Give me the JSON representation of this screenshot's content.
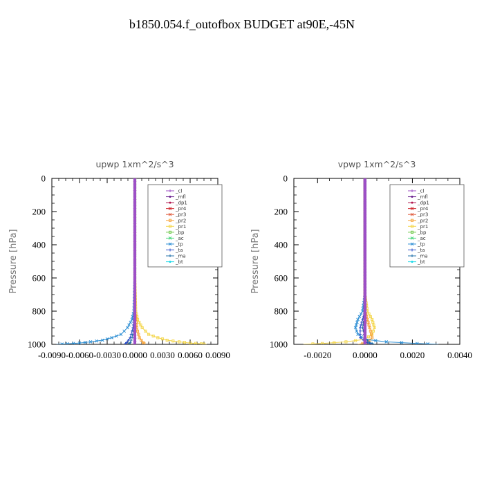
{
  "title": "b1850.054.f_outofbox  BUDGET at90E,-45N",
  "legend_entries": [
    {
      "label": "_cl",
      "color": "#9d4fc6"
    },
    {
      "label": "_mfl",
      "color": "#6a1f8e"
    },
    {
      "label": "_dp1",
      "color": "#b2164f"
    },
    {
      "label": "_pr4",
      "color": "#d0282e"
    },
    {
      "label": "_pr3",
      "color": "#e05a3c"
    },
    {
      "label": "_pr2",
      "color": "#f7a43a"
    },
    {
      "label": "_pr1",
      "color": "#f4d64a"
    },
    {
      "label": "_bp",
      "color": "#6fc84a"
    },
    {
      "label": "_ac",
      "color": "#47d67a"
    },
    {
      "label": "_tp",
      "color": "#2e8fd4"
    },
    {
      "label": "_ta",
      "color": "#2a4dc8"
    },
    {
      "label": "_ma",
      "color": "#1f6fa8"
    },
    {
      "label": "_bt",
      "color": "#18d8e8"
    }
  ],
  "chart_data": [
    {
      "type": "line",
      "title": "upwp   1xm^2/s^3",
      "ylabel": "Pressure [hPa]",
      "xlabel": "",
      "xlim": [
        -0.009,
        0.009
      ],
      "ylim": [
        1000,
        0
      ],
      "y_inverted": true,
      "xticks": [
        -0.009,
        -0.006,
        -0.003,
        0.0,
        0.003,
        0.006,
        0.009
      ],
      "xtick_labels": [
        "-0.0090",
        "-0.0060",
        "-0.0030",
        "0.0000",
        "0.0030",
        "0.0060",
        "0.0090"
      ],
      "yticks": [
        0,
        200,
        400,
        600,
        800,
        1000
      ],
      "ytick_labels": [
        "0",
        "200",
        "400",
        "600",
        "800",
        "1000"
      ],
      "legend_position": "top-right",
      "series": [
        {
          "name": "_pr1",
          "y": [
            0,
            200,
            400,
            600,
            800,
            850,
            900,
            940,
            960,
            975,
            985,
            992,
            997,
            1000
          ],
          "x": [
            0.0,
            0.0,
            0.0,
            0.0,
            0.0001,
            0.0003,
            0.0008,
            0.0015,
            0.0025,
            0.0035,
            0.0048,
            0.006,
            0.0072,
            0.0078
          ]
        },
        {
          "name": "_pr2",
          "y": [
            0,
            400,
            800,
            900,
            960,
            990,
            1000
          ],
          "x": [
            0.0,
            0.0,
            0.0,
            0.0002,
            0.0005,
            0.0009,
            0.0011
          ]
        },
        {
          "name": "_tp",
          "y": [
            0,
            200,
            400,
            600,
            800,
            850,
            900,
            940,
            960,
            975,
            985,
            992,
            997,
            1000
          ],
          "x": [
            0.0,
            0.0,
            0.0,
            0.0,
            -0.0001,
            -0.0003,
            -0.0008,
            -0.0015,
            -0.0025,
            -0.0035,
            -0.0048,
            -0.006,
            -0.0073,
            -0.0085
          ]
        },
        {
          "name": "_ta",
          "y": [
            0,
            400,
            800,
            900,
            960,
            990,
            1000
          ],
          "x": [
            0.0,
            0.0,
            0.0,
            -0.0002,
            -0.0005,
            -0.0009,
            -0.0011
          ]
        },
        {
          "name": "_ma",
          "y": [
            0,
            400,
            800,
            900,
            960,
            990,
            1000
          ],
          "x": [
            0.0,
            0.0,
            0.0,
            -0.0001,
            -0.0003,
            -0.0005,
            -0.0007
          ]
        },
        {
          "name": "_dp1",
          "y": [
            0,
            200,
            400,
            600,
            800,
            1000
          ],
          "x": [
            0.0,
            0.0,
            0.0,
            0.0,
            0.0,
            0.0
          ]
        },
        {
          "name": "_mfl",
          "y": [
            0,
            200,
            400,
            600,
            800,
            1000
          ],
          "x": [
            0.0,
            0.0,
            0.0,
            0.0,
            0.0,
            0.0
          ]
        },
        {
          "name": "_cl",
          "y": [
            0,
            200,
            400,
            600,
            800,
            1000
          ],
          "x": [
            0.0,
            0.0,
            0.0,
            0.0,
            0.0,
            0.0
          ]
        }
      ]
    },
    {
      "type": "line",
      "title": "vpwp   1xm^2/s^3",
      "ylabel": "Pressure [hPa]",
      "xlabel": "",
      "xlim": [
        -0.003,
        0.004
      ],
      "ylim": [
        1000,
        0
      ],
      "y_inverted": true,
      "xticks": [
        -0.002,
        0.0,
        0.002,
        0.004
      ],
      "xtick_labels": [
        "-0.0020",
        "0.0000",
        "0.0020",
        "0.0040"
      ],
      "yticks": [
        0,
        200,
        400,
        600,
        800,
        1000
      ],
      "ytick_labels": [
        "0",
        "200",
        "400",
        "600",
        "800",
        "1000"
      ],
      "legend_position": "top-right",
      "series": [
        {
          "name": "_pr1",
          "y": [
            0,
            400,
            700,
            800,
            850,
            900,
            940,
            970,
            985,
            995,
            1000
          ],
          "x": [
            0.0,
            0.0,
            0.0,
            0.0001,
            0.0003,
            0.0004,
            0.0003,
            0.0,
            -0.0008,
            -0.0018,
            -0.0026
          ]
        },
        {
          "name": "_pr2",
          "y": [
            0,
            400,
            800,
            900,
            960,
            990,
            1000
          ],
          "x": [
            0.0,
            0.0,
            0.0,
            0.0002,
            0.0003,
            0.0001,
            -0.0003
          ]
        },
        {
          "name": "_tp",
          "y": [
            0,
            400,
            700,
            800,
            850,
            900,
            940,
            970,
            985,
            995,
            1000
          ],
          "x": [
            0.0,
            0.0,
            0.0,
            -0.0001,
            -0.0003,
            -0.0004,
            -0.0003,
            0.0,
            0.0009,
            0.0022,
            0.0031
          ]
        },
        {
          "name": "_ta",
          "y": [
            0,
            400,
            800,
            900,
            960,
            990,
            1000
          ],
          "x": [
            0.0,
            0.0,
            0.0,
            -0.0002,
            -0.0002,
            0.0001,
            0.0003
          ]
        },
        {
          "name": "_ma",
          "y": [
            0,
            400,
            800,
            900,
            960,
            990,
            1000
          ],
          "x": [
            0.0,
            0.0,
            0.0,
            -0.0001,
            0.0,
            0.0002,
            0.0004
          ]
        },
        {
          "name": "_dp1",
          "y": [
            0,
            200,
            400,
            600,
            800,
            1000
          ],
          "x": [
            0.0,
            0.0,
            0.0,
            0.0,
            0.0,
            0.0
          ]
        },
        {
          "name": "_mfl",
          "y": [
            0,
            200,
            400,
            600,
            800,
            1000
          ],
          "x": [
            0.0,
            0.0,
            0.0,
            0.0,
            0.0,
            0.0
          ]
        },
        {
          "name": "_cl",
          "y": [
            0,
            200,
            400,
            600,
            800,
            1000
          ],
          "x": [
            0.0,
            0.0,
            0.0,
            0.0,
            0.0,
            0.0
          ]
        }
      ]
    }
  ]
}
